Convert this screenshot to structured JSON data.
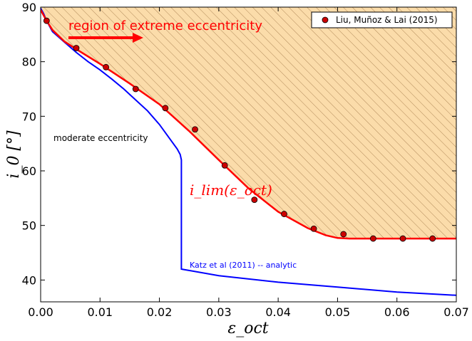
{
  "chart_data": {
    "type": "line",
    "xlabel": "ε_oct",
    "ylabel": "i_0 [°]",
    "xlim": [
      0.0,
      0.07
    ],
    "ylim": [
      36,
      90
    ],
    "xticks": [
      0.0,
      0.01,
      0.02,
      0.03,
      0.04,
      0.05,
      0.06,
      0.07
    ],
    "xtick_labels": [
      "0.00",
      "0.01",
      "0.02",
      "0.03",
      "0.04",
      "0.05",
      "0.06",
      "0.07"
    ],
    "yticks": [
      40,
      50,
      60,
      70,
      80,
      90
    ],
    "ytick_labels": [
      "40",
      "50",
      "60",
      "70",
      "80",
      "90"
    ],
    "grid": false,
    "legend_position": "top-right",
    "series": [
      {
        "name": "Liu, Muñoz & Lai (2015)",
        "kind": "scatter",
        "color": "#cc0000",
        "x": [
          0.001,
          0.006,
          0.011,
          0.016,
          0.021,
          0.026,
          0.031,
          0.036,
          0.041,
          0.046,
          0.051,
          0.056,
          0.061,
          0.066
        ],
        "y": [
          87.5,
          82.5,
          79.0,
          75.0,
          71.5,
          67.6,
          61.0,
          54.7,
          52.1,
          49.4,
          48.4,
          47.6,
          47.6,
          47.6
        ]
      },
      {
        "name": "",
        "kind": "line",
        "color": "#ff0000",
        "x": [
          0.0,
          0.0005,
          0.001,
          0.002,
          0.004,
          0.006,
          0.01,
          0.015,
          0.02,
          0.025,
          0.03,
          0.035,
          0.04,
          0.045,
          0.048,
          0.05,
          0.052,
          0.055,
          0.06,
          0.065,
          0.07
        ],
        "y": [
          89.5,
          88.5,
          87.5,
          85.8,
          83.7,
          82.3,
          79.6,
          76.0,
          72.2,
          67.3,
          62.0,
          56.8,
          52.5,
          49.5,
          48.2,
          47.7,
          47.6,
          47.6,
          47.6,
          47.6,
          47.6
        ]
      },
      {
        "name": "",
        "kind": "line",
        "color": "#0000ff",
        "x": [
          0.0,
          0.0005,
          0.001,
          0.002,
          0.004,
          0.006,
          0.008,
          0.01,
          0.012,
          0.014,
          0.016,
          0.018,
          0.02,
          0.021,
          0.022,
          0.023,
          0.0235,
          0.0237,
          0.0237,
          0.03,
          0.04,
          0.05,
          0.06,
          0.07
        ],
        "y": [
          89.8,
          88.8,
          87.5,
          85.5,
          83.6,
          81.7,
          80.0,
          78.5,
          76.8,
          75.0,
          73.0,
          71.0,
          68.5,
          67.0,
          65.5,
          64.0,
          63.0,
          62.0,
          42.0,
          40.8,
          39.6,
          38.7,
          37.8,
          37.2
        ]
      }
    ],
    "annotations": {
      "region": "region of extreme eccentricity",
      "moderate": "moderate eccentricity",
      "katz": "Katz et al (2011) -- analytic",
      "ilim": "i_lim(ε_oct)"
    }
  }
}
